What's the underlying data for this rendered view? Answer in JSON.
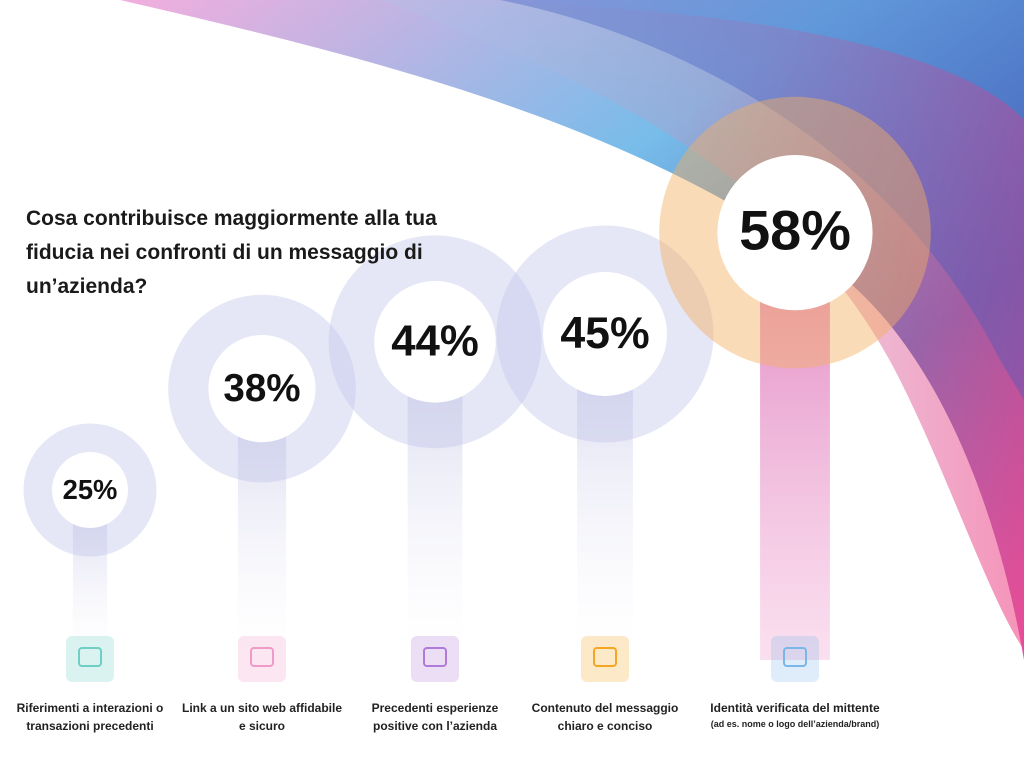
{
  "chart_data": {
    "type": "bubble-pillar",
    "title": "Cosa contribuisce maggiormente alla tua fiducia nei confronti di un messaggio di un’azienda?",
    "categories": [
      "Riferimenti a interazioni o transazioni precedenti",
      "Link a un sito web affidabile e sicuro",
      "Precedenti esperienze positive con l’azienda",
      "Contenuto del messaggio chiaro e conciso",
      "Identità verificata del mittente"
    ],
    "footnote": "(ad es. nome o logo dell’azienda/brand)",
    "values": [
      25,
      38,
      44,
      45,
      58
    ],
    "value_labels": [
      "25%",
      "38%",
      "44%",
      "45%",
      "58%"
    ]
  }
}
